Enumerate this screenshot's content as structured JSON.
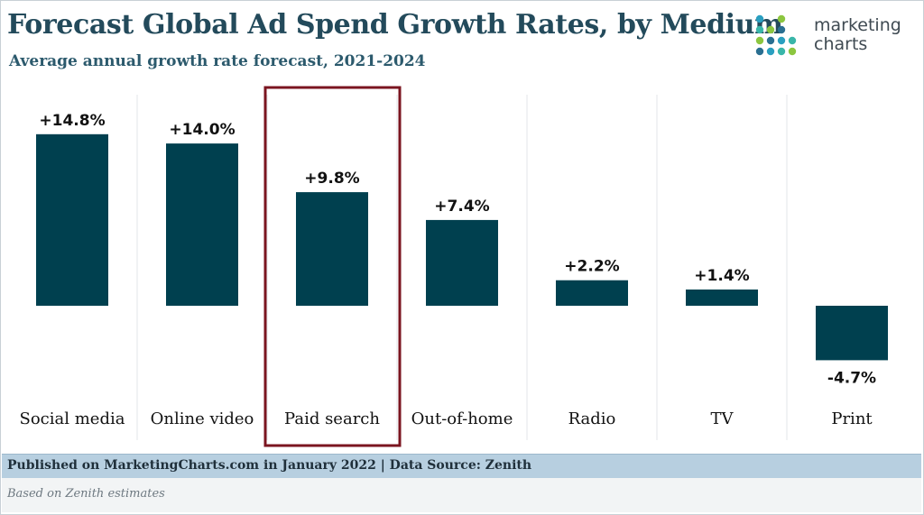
{
  "header": {
    "title": "Forecast Global Ad Spend Growth Rates, by Medium",
    "subtitle": "Average annual growth rate forecast, 2021-2024"
  },
  "logo": {
    "line1": "marketing",
    "line2": "charts",
    "dot_colors": [
      "#2a9fc0",
      "#39b6a9",
      "#8cc63f",
      "#2a6f91"
    ]
  },
  "chart_data": {
    "type": "bar",
    "categories": [
      "Social media",
      "Online video",
      "Paid search",
      "Out-of-home",
      "Radio",
      "TV",
      "Print"
    ],
    "values": [
      14.8,
      14.0,
      9.8,
      7.4,
      2.2,
      1.4,
      -4.7
    ],
    "data_labels": [
      "+14.8%",
      "+14.0%",
      "+9.8%",
      "+7.4%",
      "+2.2%",
      "+1.4%",
      "-4.7%"
    ],
    "highlighted_category": "Paid search",
    "ylim": [
      -5,
      15
    ],
    "grid": false,
    "colors": {
      "bar": "#00404f",
      "highlight_border": "#7b1520",
      "separator": "#e3e6e8"
    }
  },
  "footer": {
    "published": "Published on MarketingCharts.com in January 2022 | Data Source: Zenith",
    "note": "Based on Zenith estimates"
  }
}
